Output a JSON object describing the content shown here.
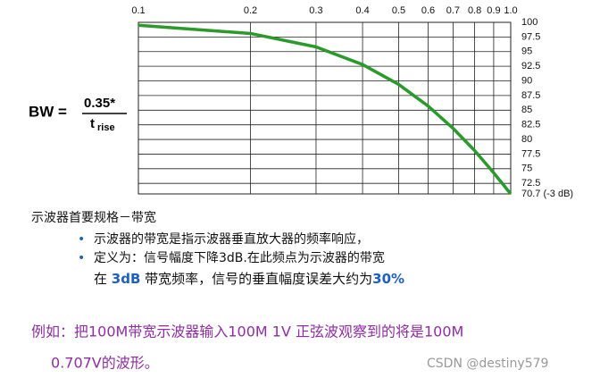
{
  "chart_data": {
    "type": "line",
    "xscale": "log",
    "x": [
      0.1,
      0.2,
      0.3,
      0.4,
      0.5,
      0.6,
      0.7,
      0.8,
      0.9,
      1.0
    ],
    "values": [
      99.5,
      98.1,
      95.8,
      92.8,
      89.4,
      85.7,
      81.9,
      78.1,
      74.3,
      70.7
    ],
    "color": "#2a9a2a",
    "xlim": [
      0.1,
      1.0
    ],
    "xticks": [
      0.1,
      0.2,
      0.3,
      0.4,
      0.5,
      0.6,
      0.7,
      0.8,
      0.9,
      {
        "value": 1.0,
        "label": "1.0"
      }
    ],
    "ylim": [
      70.7,
      100
    ],
    "yticks": [
      {
        "value": 70.7,
        "label": "70.7 (-3 dB)"
      },
      72.5,
      75,
      77.5,
      80,
      82.5,
      85,
      87.5,
      90,
      92.5,
      95,
      97.5,
      100
    ],
    "grid": true
  },
  "formula": {
    "lhs": "BW =",
    "numerator": "0.35*",
    "denominator": "t",
    "subscript": "rise"
  },
  "notes": {
    "heading": "示波器首要规格－带宽",
    "bullets": [
      "示波器的带宽是指示波器垂直放大器的频率响应，",
      "定义为：信号幅度下降3dB.在此频点为示波器的带宽"
    ],
    "continuation": [
      "在 ",
      "3dB",
      " 带宽频率，信号的垂直幅度误差大约为",
      "30%"
    ],
    "example": [
      "例如：把100M带宽示波器输入100M  1V  正弦波观察到的将是100M",
      "0.707V的波形。"
    ]
  },
  "watermark": "CSDN @destiny579"
}
